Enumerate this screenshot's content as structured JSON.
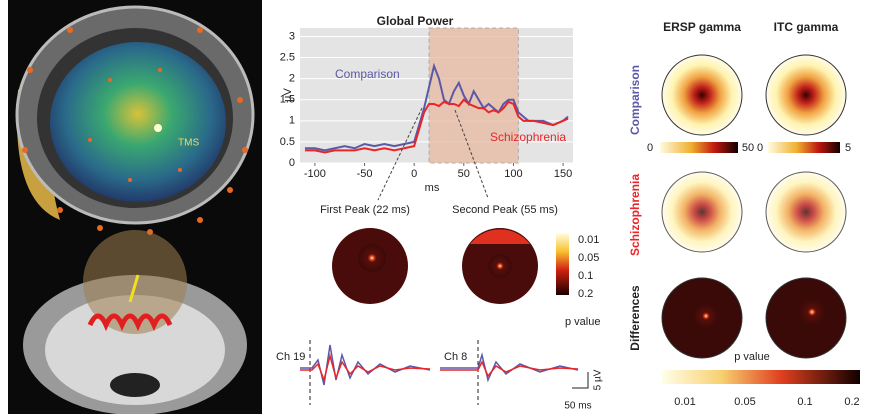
{
  "chart_data": {
    "type": "line",
    "title": "Global Power",
    "y_label": "µV",
    "x_label": "ms",
    "x": [
      -110,
      -100,
      -90,
      -80,
      -70,
      -60,
      -50,
      -40,
      -30,
      -20,
      -10,
      0,
      5,
      10,
      15,
      20,
      25,
      30,
      35,
      40,
      45,
      50,
      55,
      60,
      65,
      70,
      75,
      80,
      85,
      90,
      95,
      100,
      105,
      110,
      115,
      120,
      130,
      140,
      150,
      155
    ],
    "series": [
      {
        "name": "Comparison",
        "color": "#5b58a8",
        "values": [
          0.35,
          0.35,
          0.3,
          0.35,
          0.4,
          0.35,
          0.45,
          0.4,
          0.45,
          0.4,
          0.45,
          0.5,
          0.9,
          1.3,
          1.8,
          2.3,
          2.0,
          1.5,
          1.4,
          1.7,
          1.9,
          1.6,
          1.4,
          1.7,
          1.5,
          1.3,
          1.4,
          1.3,
          1.2,
          1.4,
          1.5,
          1.5,
          1.2,
          1.1,
          1.0,
          1.0,
          1.0,
          0.9,
          1.0,
          1.1
        ]
      },
      {
        "name": "Schizophrenia",
        "color": "#e8262a",
        "values": [
          0.3,
          0.3,
          0.25,
          0.3,
          0.3,
          0.3,
          0.35,
          0.3,
          0.35,
          0.3,
          0.35,
          0.4,
          0.8,
          1.2,
          1.4,
          1.4,
          1.35,
          1.45,
          1.4,
          1.4,
          1.35,
          1.5,
          1.4,
          1.35,
          1.3,
          1.3,
          1.2,
          1.25,
          1.2,
          1.3,
          1.45,
          1.4,
          1.1,
          1.0,
          1.0,
          1.0,
          0.95,
          0.9,
          1.0,
          1.05
        ]
      }
    ],
    "highlight_range": [
      15,
      105
    ],
    "xlim": [
      -115,
      160
    ],
    "xticks": [
      -100,
      -50,
      0,
      50,
      100,
      150
    ],
    "ylim": [
      0,
      3.2
    ],
    "yticks": [
      0,
      0.5,
      1,
      1.5,
      2,
      2.5,
      3
    ],
    "grid": true
  },
  "left_panel": {
    "label": "TMS"
  },
  "peaks": {
    "first": "First Peak (22 ms)",
    "second": "Second Peak (55 ms)",
    "colorbar": [
      "0.01",
      "0.05",
      "0.1",
      "0.2"
    ],
    "colorbar_title": "p value"
  },
  "channels": {
    "first": "Ch 19",
    "second": "Ch 8",
    "scale_y": "5 µV",
    "scale_x": "50 ms"
  },
  "right_panel": {
    "columns": [
      "ERSP gamma",
      "ITC gamma"
    ],
    "rows": [
      "Comparison",
      "Schizophrenia",
      "Differences"
    ],
    "ersp_range": [
      "0",
      "50"
    ],
    "itc_range": [
      "0",
      "5"
    ],
    "p_title": "p value",
    "p_ticks": [
      "0.01",
      "0.05",
      "0.1",
      "0.2"
    ]
  }
}
